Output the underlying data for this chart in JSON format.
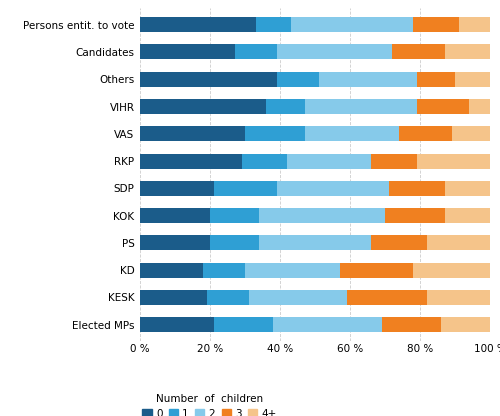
{
  "categories": [
    "Persons entit. to vote",
    "Candidates",
    "Others",
    "VIHR",
    "VAS",
    "RKP",
    "SDP",
    "KOK",
    "PS",
    "KD",
    "KESK",
    "Elected MPs"
  ],
  "segments": {
    "0": [
      33,
      27,
      39,
      36,
      30,
      29,
      21,
      20,
      20,
      18,
      19,
      21
    ],
    "1": [
      10,
      12,
      12,
      11,
      17,
      13,
      18,
      14,
      14,
      12,
      12,
      17
    ],
    "2": [
      35,
      33,
      28,
      32,
      27,
      24,
      32,
      36,
      32,
      27,
      28,
      31
    ],
    "3": [
      13,
      15,
      11,
      15,
      15,
      13,
      16,
      17,
      16,
      21,
      23,
      17
    ],
    "4+": [
      9,
      13,
      10,
      6,
      11,
      21,
      13,
      13,
      18,
      22,
      18,
      14
    ]
  },
  "colors": {
    "0": "#1b5c8a",
    "1": "#2f9fd4",
    "2": "#86caea",
    "3": "#f08020",
    "4+": "#f5c48a"
  },
  "legend_labels": [
    "0",
    "1",
    "2",
    "3",
    "4+"
  ],
  "legend_title": "Number  of  children",
  "xlim": [
    0,
    100
  ],
  "background_color": "#ffffff",
  "bar_height": 0.55,
  "figsize": [
    5.0,
    4.16
  ],
  "dpi": 100
}
